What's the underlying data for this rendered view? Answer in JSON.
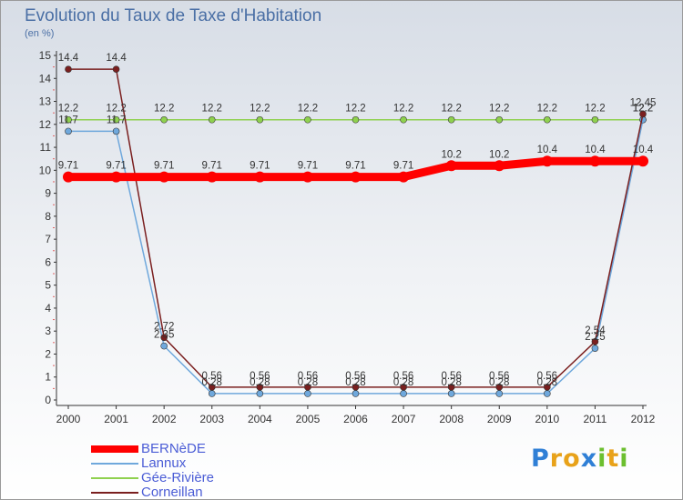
{
  "title": "Evolution du Taux de Taxe d'Habitation",
  "subtitle": "(en %)",
  "chart_data": {
    "type": "line",
    "x": [
      "2000",
      "2001",
      "2002",
      "2003",
      "2004",
      "2005",
      "2006",
      "2007",
      "2008",
      "2009",
      "2010",
      "2011",
      "2012"
    ],
    "ylim": [
      0,
      15
    ],
    "yticks": [
      "0",
      "1",
      "2",
      "3",
      "4",
      "5",
      "6",
      "7",
      "8",
      "9",
      "10",
      "11",
      "12",
      "13",
      "14",
      "15"
    ],
    "grid": false,
    "legend_position": "bottom-left",
    "series": [
      {
        "name": "BERNèDE",
        "color": "#ff0000",
        "values": [
          9.71,
          9.71,
          9.71,
          9.71,
          9.71,
          9.71,
          9.71,
          9.71,
          10.2,
          10.2,
          10.4,
          10.4,
          10.4
        ],
        "labels": [
          "9.71",
          "9.71",
          "9.71",
          "9.71",
          "9.71",
          "9.71",
          "9.71",
          "9.71",
          "10.2",
          "10.2",
          "10.4",
          "10.4",
          "10.4"
        ]
      },
      {
        "name": "Lannux",
        "color": "#6fa8dc",
        "values": [
          11.7,
          11.7,
          2.35,
          0.28,
          0.28,
          0.28,
          0.28,
          0.28,
          0.28,
          0.28,
          0.28,
          2.25,
          12.2
        ],
        "labels": [
          "11.7",
          "11.7",
          "2.35",
          "0.28",
          "0.28",
          "0.28",
          "0.28",
          "0.28",
          "0.28",
          "0.28",
          "0.28",
          "2.25",
          "12.2"
        ]
      },
      {
        "name": "Gée-Rivière",
        "color": "#8fd14f",
        "values": [
          12.2,
          12.2,
          12.2,
          12.2,
          12.2,
          12.2,
          12.2,
          12.2,
          12.2,
          12.2,
          12.2,
          12.2,
          12.2
        ],
        "labels": [
          "12.2",
          "12.2",
          "12.2",
          "12.2",
          "12.2",
          "12.2",
          "12.2",
          "12.2",
          "12.2",
          "12.2",
          "12.2",
          "12.2",
          "12.2"
        ]
      },
      {
        "name": "Corneillan",
        "color": "#7a1f1f",
        "values": [
          14.4,
          14.4,
          2.72,
          0.56,
          0.56,
          0.56,
          0.56,
          0.56,
          0.56,
          0.56,
          0.56,
          2.54,
          12.45
        ],
        "labels": [
          "14.4",
          "14.4",
          "2.72",
          "0.56",
          "0.56",
          "0.56",
          "0.56",
          "0.56",
          "0.56",
          "0.56",
          "0.56",
          "2.54",
          "12.45"
        ]
      }
    ]
  },
  "legend": [
    {
      "label": "BERNèDE",
      "color": "#ff0000",
      "thickness": "thick"
    },
    {
      "label": "Lannux",
      "color": "#6fa8dc",
      "thickness": "thin"
    },
    {
      "label": "Gée-Rivière",
      "color": "#8fd14f",
      "thickness": "thin"
    },
    {
      "label": "Corneillan",
      "color": "#7a1f1f",
      "thickness": "thin"
    }
  ],
  "logo": {
    "letters": [
      "P",
      "r",
      "o",
      "x",
      "i",
      "t",
      "i"
    ],
    "colors": [
      "#2f7fd6",
      "#e8a21a",
      "#e8a21a",
      "#2f7fd6",
      "#6cbf2f",
      "#e8a21a",
      "#6cbf2f"
    ]
  }
}
